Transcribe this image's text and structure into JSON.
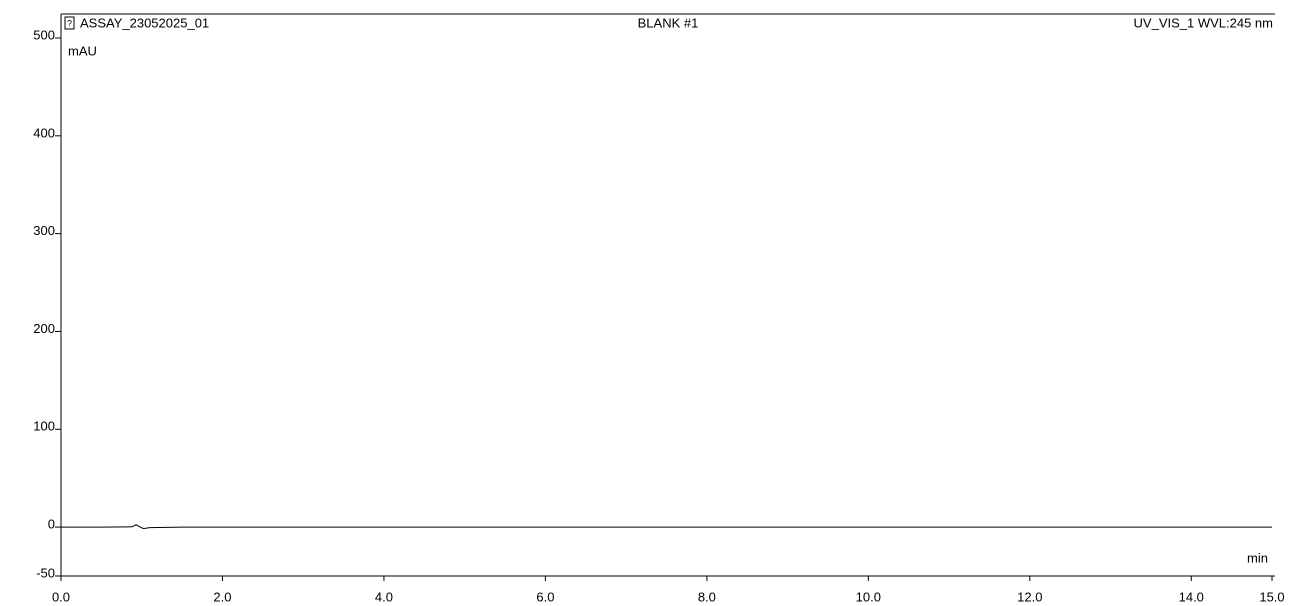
{
  "chart_data": {
    "type": "line",
    "title": "BLANK #1",
    "header_left": "ASSAY_23052025_01",
    "header_right": "UV_VIS_1 WVL:245 nm",
    "y_label": "mAU",
    "x_label": "min",
    "x": [
      0,
      0.5,
      0.88,
      0.93,
      0.97,
      1.02,
      1.1,
      1.5,
      2.2,
      15
    ],
    "series": [
      {
        "color": "#000000",
        "values": [
          0,
          0,
          0.3,
          2.5,
          0.5,
          -1.5,
          -0.5,
          0,
          0,
          0
        ]
      }
    ],
    "xlim": [
      0,
      15
    ],
    "xticks": [
      {
        "value": 0,
        "label": "0.0"
      },
      {
        "value": 2,
        "label": "2.0"
      },
      {
        "value": 4,
        "label": "4.0"
      },
      {
        "value": 6,
        "label": "6.0"
      },
      {
        "value": 8,
        "label": "8.0"
      },
      {
        "value": 10,
        "label": "10.0"
      },
      {
        "value": 12,
        "label": "12.0"
      },
      {
        "value": 14,
        "label": "14.0"
      },
      {
        "value": 15,
        "label": "15.0"
      }
    ],
    "ylim": [
      -50,
      500
    ],
    "yticks": [
      -50,
      0,
      100,
      200,
      300,
      400,
      500
    ],
    "grid": false
  }
}
